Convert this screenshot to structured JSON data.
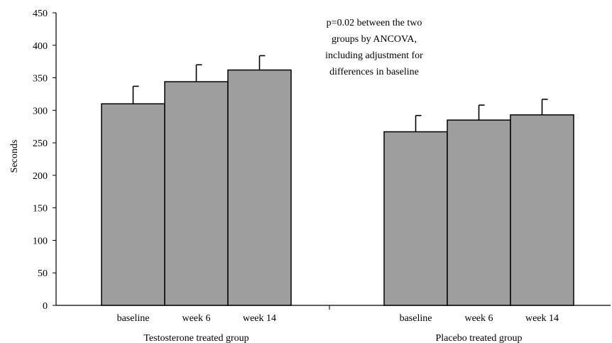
{
  "chart_data": {
    "type": "bar",
    "ylabel": "Seconds",
    "ylim": [
      0,
      450
    ],
    "yticks": [
      0,
      50,
      100,
      150,
      200,
      250,
      300,
      350,
      400,
      450
    ],
    "grid": false,
    "groups": [
      {
        "name": "Testosterone treated group",
        "bars": [
          {
            "label": "baseline",
            "value": 310,
            "error": 27
          },
          {
            "label": "week 6",
            "value": 344,
            "error": 26
          },
          {
            "label": "week 14",
            "value": 362,
            "error": 22
          }
        ]
      },
      {
        "name": "Placebo treated group",
        "bars": [
          {
            "label": "baseline",
            "value": 267,
            "error": 25
          },
          {
            "label": "week 6",
            "value": 285,
            "error": 23
          },
          {
            "label": "week 14",
            "value": 293,
            "error": 24
          }
        ]
      }
    ],
    "annotation": [
      "p=0.02 between the two",
      "groups by ANCOVA,",
      "including adjustment for",
      "differences in baseline"
    ],
    "colors": {
      "bar_fill": "#9e9e9e",
      "bar_stroke": "#000000"
    }
  }
}
